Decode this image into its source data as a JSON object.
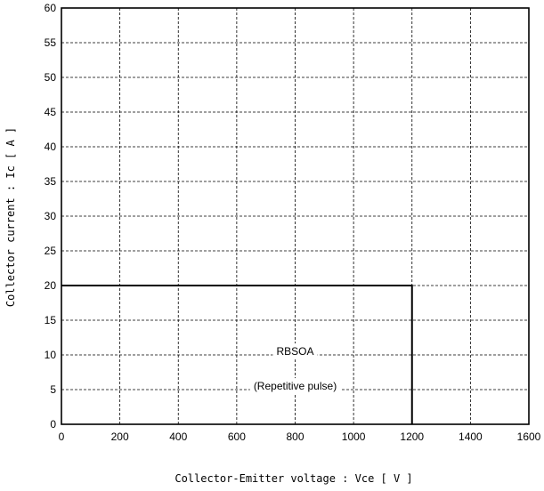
{
  "chart_data": {
    "type": "line",
    "title": "",
    "xlabel": "Collector-Emitter voltage  :  Vce [ V ]",
    "ylabel": "Collector current  :  Ic [ A ]",
    "xlim": [
      0,
      1600
    ],
    "ylim": [
      0,
      60
    ],
    "x_ticks": [
      "0",
      "200",
      "400",
      "600",
      "800",
      "1000",
      "1200",
      "1400",
      "1600"
    ],
    "y_ticks": [
      "0",
      "5",
      "10",
      "15",
      "20",
      "25",
      "30",
      "35",
      "40",
      "45",
      "50",
      "55",
      "60"
    ],
    "grid": true,
    "series": [
      {
        "x": [
          0,
          1200,
          1200
        ],
        "y": [
          20,
          20,
          0
        ]
      }
    ],
    "annotations": [
      {
        "text": "RBSOA",
        "x": 800,
        "y": 10.5
      },
      {
        "text": "(Repetitive pulse)",
        "x": 800,
        "y": 5.5
      }
    ]
  }
}
